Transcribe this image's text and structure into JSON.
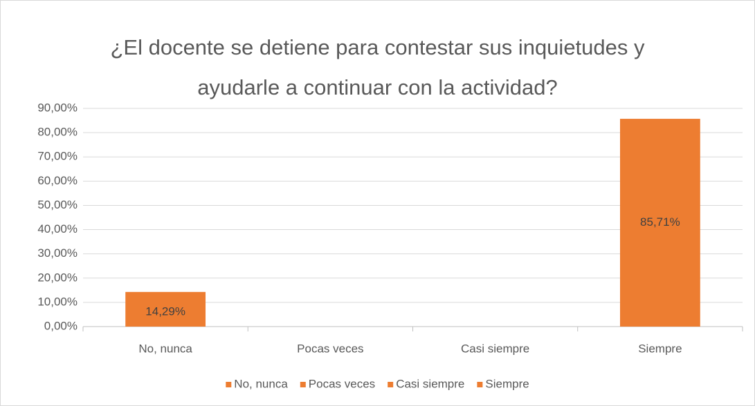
{
  "chart_data": {
    "type": "bar",
    "title": "¿El docente se detiene para contestar sus inquietudes y ayudarle a continuar con la actividad?",
    "categories": [
      "No, nunca",
      "Pocas veces",
      "Casi siempre",
      "Siempre"
    ],
    "values": [
      14.29,
      0,
      0,
      85.71
    ],
    "value_labels": [
      "14,29%",
      null,
      null,
      "85,71%"
    ],
    "color": "#ed7d31",
    "ylim": [
      0,
      90
    ],
    "yticks": [
      {
        "value": 0,
        "label": "0,00%"
      },
      {
        "value": 10,
        "label": "10,00%"
      },
      {
        "value": 20,
        "label": "20,00%"
      },
      {
        "value": 30,
        "label": "30,00%"
      },
      {
        "value": 40,
        "label": "40,00%"
      },
      {
        "value": 50,
        "label": "50,00%"
      },
      {
        "value": 60,
        "label": "60,00%"
      },
      {
        "value": 70,
        "label": "70,00%"
      },
      {
        "value": 80,
        "label": "80,00%"
      },
      {
        "value": 90,
        "label": "90,00%"
      }
    ],
    "grid": true,
    "legend": "bottom"
  }
}
